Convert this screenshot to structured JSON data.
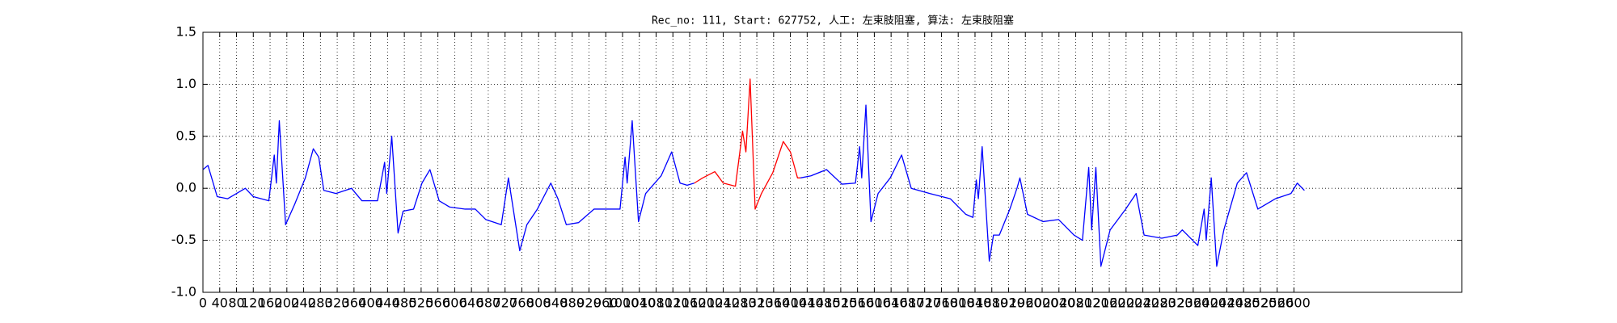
{
  "chart_data": {
    "type": "line",
    "title": "Rec_no: 111, Start: 627752, 人工: 左束肢阻塞, 算法: 左束肢阻塞",
    "xlim": [
      0,
      3000
    ],
    "ylim": [
      -1.0,
      1.5
    ],
    "xticks": [
      0,
      40,
      80,
      120,
      160,
      200,
      240,
      280,
      320,
      360,
      400,
      440,
      480,
      520,
      560,
      600,
      640,
      680,
      720,
      760,
      800,
      840,
      880,
      920,
      960,
      1000,
      1040,
      1080,
      1120,
      1160,
      1200,
      1240,
      1280,
      1320,
      1360,
      1400,
      1440,
      1480,
      1520,
      1560,
      1600,
      1640,
      1680,
      1720,
      1760,
      1800,
      1840,
      1880,
      1920,
      1960,
      2000,
      2040,
      2080,
      2120,
      2160,
      2200,
      2240,
      2280,
      2320,
      2360,
      2400,
      2440,
      2480,
      2520,
      2560,
      2600
    ],
    "yticks": [
      {
        "value": -1.0,
        "label": "-1.0"
      },
      -0.5,
      {
        "value": 0,
        "label": "0.0"
      },
      0.5,
      {
        "value": 1.0,
        "label": "1.0"
      },
      1.5
    ],
    "grid": true,
    "series": [
      {
        "color": "#0000ff",
        "x": [
          0,
          12,
          34,
          59,
          101,
          120,
          157,
          170,
          175,
          182,
          197,
          219,
          244,
          263,
          276,
          288,
          317,
          354,
          379,
          416,
          433,
          438,
          450,
          465,
          477,
          502,
          522,
          541,
          563,
          588,
          625,
          649,
          674,
          711,
          728,
          755,
          772,
          797,
          829,
          846,
          866,
          895,
          932,
          969,
          994,
          1006,
          1011,
          1023,
          1038,
          1055,
          1092,
          1117,
          1137,
          1154,
          1171
        ],
        "values": [
          0.18,
          0.22,
          -0.08,
          -0.1,
          0.0,
          -0.08,
          -0.12,
          0.32,
          0.05,
          0.65,
          -0.35,
          -0.15,
          0.1,
          0.38,
          0.3,
          -0.02,
          -0.05,
          0.0,
          -0.12,
          -0.12,
          0.25,
          -0.05,
          0.5,
          -0.43,
          -0.22,
          -0.2,
          0.05,
          0.18,
          -0.12,
          -0.18,
          -0.2,
          -0.2,
          -0.3,
          -0.35,
          0.1,
          -0.6,
          -0.35,
          -0.2,
          0.05,
          -0.1,
          -0.35,
          -0.33,
          -0.2,
          -0.2,
          -0.2,
          0.3,
          0.05,
          0.65,
          -0.32,
          -0.05,
          0.12,
          0.35,
          0.05,
          0.03,
          0.05
        ]
      },
      {
        "color": "#ff0000",
        "x": [
          1171,
          1191,
          1220,
          1240,
          1269,
          1286,
          1294,
          1304,
          1316,
          1331,
          1358,
          1383,
          1400,
          1417,
          1424
        ],
        "values": [
          0.05,
          0.1,
          0.16,
          0.05,
          0.02,
          0.55,
          0.35,
          1.05,
          -0.2,
          -0.05,
          0.15,
          0.45,
          0.35,
          0.1,
          0.1
        ]
      },
      {
        "color": "#0000ff",
        "x": [
          1424,
          1449,
          1486,
          1523,
          1555,
          1565,
          1570,
          1580,
          1592,
          1609,
          1638,
          1665,
          1688,
          1732,
          1781,
          1818,
          1835,
          1843,
          1848,
          1857,
          1874,
          1884,
          1898,
          1923,
          1940,
          1947,
          1965,
          2002,
          2039,
          2076,
          2096,
          2111,
          2118,
          2128,
          2140,
          2162,
          2199,
          2224,
          2243,
          2285,
          2322,
          2334,
          2371,
          2386,
          2391,
          2403,
          2416,
          2433,
          2465,
          2487,
          2514,
          2556,
          2593,
          2608,
          2625
        ],
        "values": [
          0.1,
          0.12,
          0.18,
          0.04,
          0.05,
          0.4,
          0.1,
          0.8,
          -0.32,
          -0.05,
          0.1,
          0.32,
          0.0,
          -0.05,
          -0.1,
          -0.25,
          -0.28,
          0.08,
          -0.1,
          0.4,
          -0.7,
          -0.45,
          -0.45,
          -0.2,
          0.0,
          0.1,
          -0.25,
          -0.32,
          -0.3,
          -0.45,
          -0.5,
          0.2,
          -0.4,
          0.2,
          -0.75,
          -0.4,
          -0.2,
          -0.05,
          -0.45,
          -0.48,
          -0.45,
          -0.4,
          -0.55,
          -0.2,
          -0.5,
          0.1,
          -0.75,
          -0.4,
          0.05,
          0.15,
          -0.2,
          -0.1,
          -0.05,
          0.05,
          -0.02
        ]
      }
    ]
  }
}
